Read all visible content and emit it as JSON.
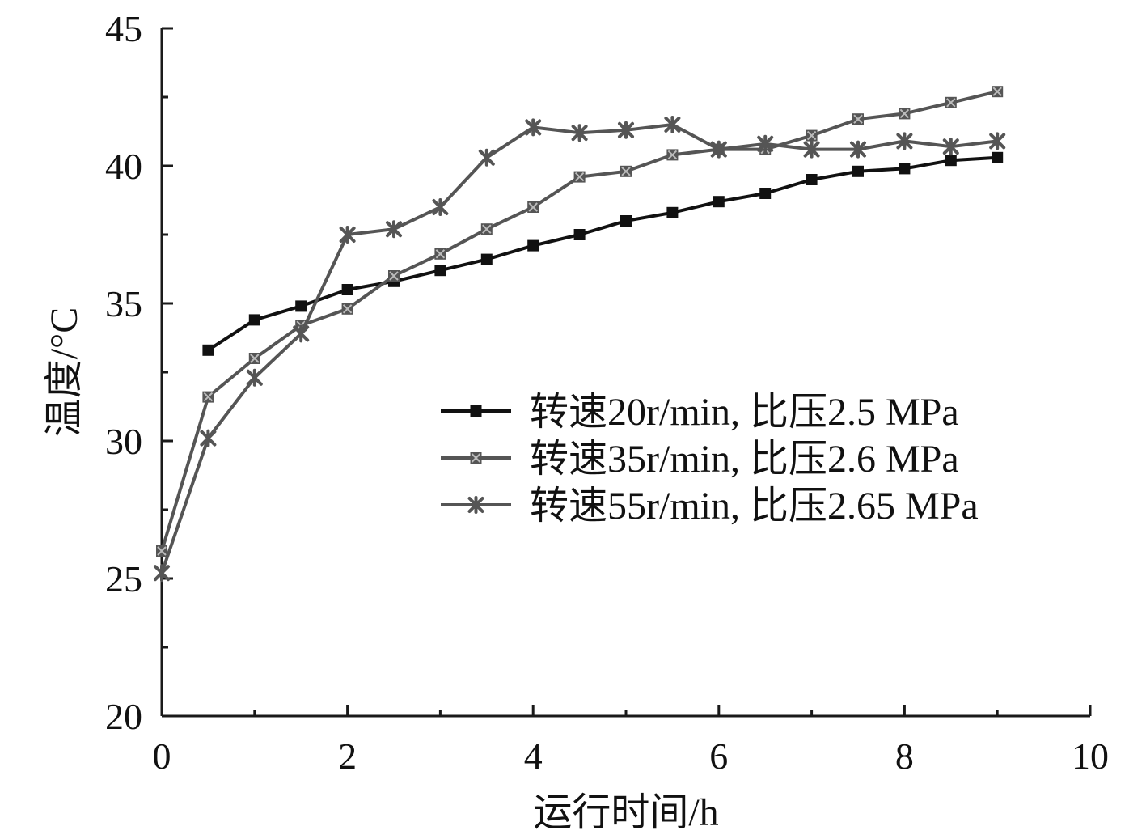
{
  "chart_data": {
    "type": "line",
    "xlabel": "运行时间/h",
    "ylabel": "温度/°C",
    "xlim": [
      0,
      10
    ],
    "ylim": [
      20,
      45
    ],
    "x_ticks": [
      0,
      2,
      4,
      6,
      8,
      10
    ],
    "y_ticks": [
      20,
      25,
      30,
      35,
      40,
      45
    ],
    "grid": false,
    "legend_position": "center-right",
    "series": [
      {
        "name": "转速20r/min, 比压2.5 MPa",
        "color": "#111111",
        "marker": "square",
        "x": [
          0.5,
          1,
          1.5,
          2,
          2.5,
          3,
          3.5,
          4,
          4.5,
          5,
          5.5,
          6,
          6.5,
          7,
          7.5,
          8,
          8.5,
          9
        ],
        "values": [
          33.3,
          34.4,
          34.9,
          35.5,
          35.8,
          36.2,
          36.6,
          37.1,
          37.5,
          38.0,
          38.3,
          38.7,
          39.0,
          39.5,
          39.8,
          39.9,
          40.2,
          40.3
        ]
      },
      {
        "name": "转速35r/min, 比压2.6 MPa",
        "color": "#555555",
        "marker": "square-x",
        "x": [
          0,
          0.5,
          1,
          1.5,
          2,
          2.5,
          3,
          3.5,
          4,
          4.5,
          5,
          5.5,
          6,
          6.5,
          7,
          7.5,
          8,
          8.5,
          9
        ],
        "values": [
          26.0,
          31.6,
          33.0,
          34.2,
          34.8,
          36.0,
          36.8,
          37.7,
          38.5,
          39.6,
          39.8,
          40.4,
          40.6,
          40.6,
          41.1,
          41.7,
          41.9,
          42.3,
          42.7
        ]
      },
      {
        "name": "转速55r/min, 比压2.65 MPa",
        "color": "#555555",
        "marker": "asterisk",
        "x": [
          0,
          0.5,
          1,
          1.5,
          2,
          2.5,
          3,
          3.5,
          4,
          4.5,
          5,
          5.5,
          6,
          6.5,
          7,
          7.5,
          8,
          8.5,
          9
        ],
        "values": [
          25.2,
          30.1,
          32.3,
          33.9,
          37.5,
          37.7,
          38.5,
          40.3,
          41.4,
          41.2,
          41.3,
          41.5,
          40.6,
          40.8,
          40.6,
          40.6,
          40.9,
          40.7,
          40.9
        ]
      }
    ]
  }
}
